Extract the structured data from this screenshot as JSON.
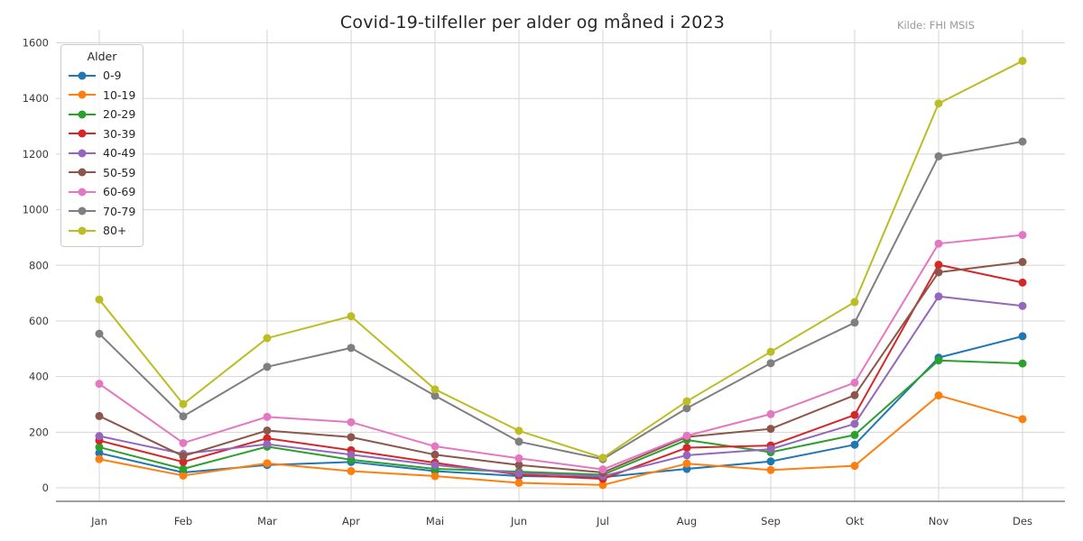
{
  "header": {
    "title": "Covid-19-tilfeller per alder og måned i 2023",
    "source": "Kilde: FHI MSIS"
  },
  "legend": {
    "title": "Alder"
  },
  "chart_data": {
    "type": "line",
    "title": "Covid-19-tilfeller per alder og måned i 2023",
    "annotation": "Kilde: FHI MSIS",
    "xlabel": "",
    "ylabel": "",
    "categories": [
      "Jan",
      "Feb",
      "Mar",
      "Apr",
      "Mai",
      "Jun",
      "Jul",
      "Aug",
      "Sep",
      "Okt",
      "Nov",
      "Des"
    ],
    "ylim": [
      0,
      1600
    ],
    "yticks": [
      0,
      200,
      400,
      600,
      800,
      1000,
      1200,
      1400,
      1600
    ],
    "grid": true,
    "legend_title": "Alder",
    "legend_position": "upper left",
    "series": [
      {
        "name": "0-9",
        "color": "#1f77b4",
        "values": [
          125,
          55,
          82,
          93,
          60,
          42,
          38,
          68,
          95,
          155,
          468,
          545
        ]
      },
      {
        "name": "10-19",
        "color": "#ff7f0e",
        "values": [
          103,
          44,
          88,
          60,
          42,
          18,
          10,
          87,
          64,
          79,
          332,
          247
        ]
      },
      {
        "name": "20-29",
        "color": "#2ca02c",
        "values": [
          146,
          68,
          148,
          101,
          68,
          58,
          47,
          172,
          128,
          190,
          458,
          447
        ]
      },
      {
        "name": "30-39",
        "color": "#d62728",
        "values": [
          170,
          93,
          178,
          135,
          90,
          47,
          32,
          144,
          152,
          262,
          802,
          738
        ]
      },
      {
        "name": "40-49",
        "color": "#9467bd",
        "values": [
          186,
          122,
          157,
          119,
          82,
          52,
          42,
          117,
          139,
          230,
          688,
          654
        ]
      },
      {
        "name": "50-59",
        "color": "#8c564b",
        "values": [
          258,
          114,
          206,
          182,
          119,
          82,
          55,
          183,
          212,
          333,
          775,
          812
        ]
      },
      {
        "name": "60-69",
        "color": "#e377c2",
        "values": [
          374,
          161,
          255,
          236,
          149,
          106,
          66,
          187,
          265,
          378,
          878,
          909
        ]
      },
      {
        "name": "70-79",
        "color": "#7f7f7f",
        "values": [
          554,
          257,
          435,
          503,
          331,
          166,
          103,
          286,
          448,
          594,
          1192,
          1245
        ]
      },
      {
        "name": "80+",
        "color": "#bcbd22",
        "values": [
          677,
          301,
          538,
          617,
          354,
          205,
          108,
          311,
          489,
          668,
          1382,
          1535
        ]
      }
    ]
  }
}
